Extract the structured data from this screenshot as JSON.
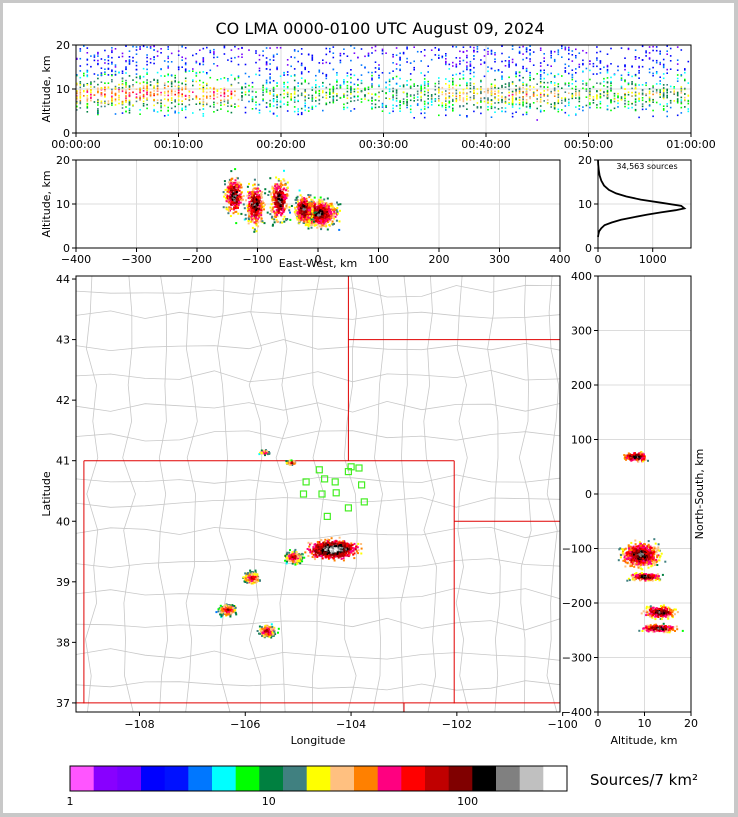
{
  "chart_data": [
    {
      "type": "scatter",
      "panel": "time-altitude",
      "title": "CO LMA 0000-0100 UTC August 09, 2024",
      "ylabel": "Altitude, km",
      "xlabel": "",
      "ylim": [
        0,
        20
      ],
      "yticks": [
        "0",
        "10",
        "20"
      ],
      "xticks": [
        "00:00:00",
        "00:10:00",
        "00:20:00",
        "00:30:00",
        "00:40:00",
        "00:50:00",
        "01:00:00"
      ],
      "x_range_minutes": [
        0,
        60
      ],
      "grid": true
    },
    {
      "type": "scatter",
      "panel": "east-west-altitude",
      "xlabel": "East-West, km",
      "ylabel": "Altitude, km",
      "xlim": [
        -400,
        400
      ],
      "ylim": [
        0,
        20
      ],
      "xticks": [
        "−400",
        "−300",
        "−200",
        "−100",
        "0",
        "100",
        "200",
        "300",
        "400"
      ],
      "yticks": [
        "0",
        "10",
        "20"
      ],
      "grid": true
    },
    {
      "type": "line",
      "panel": "altitude-histogram",
      "annotation": "34,563 sources",
      "xticks": [
        "0",
        "1000"
      ],
      "yticks": [
        "0",
        "10",
        "20"
      ],
      "series": [
        {
          "x": [
            0,
            5,
            20,
            60,
            120,
            250,
            420,
            650,
            900,
            1150,
            1420,
            1580,
            1520,
            1150,
            780,
            520,
            330,
            200,
            110,
            60,
            30,
            12,
            4,
            0
          ],
          "y": [
            2.5,
            3,
            3.8,
            4.5,
            5.2,
            5.8,
            6.4,
            7,
            7.6,
            8.1,
            8.6,
            9,
            9.6,
            10.3,
            11,
            11.7,
            12.4,
            13.2,
            14.2,
            15.3,
            16.5,
            17.8,
            19,
            20
          ]
        }
      ]
    },
    {
      "type": "scatter",
      "panel": "plan-view",
      "xlabel": "Longitude",
      "ylabel": "Latitude",
      "xlim": [
        -109.2,
        -100.05
      ],
      "ylim": [
        36.85,
        44.05
      ],
      "xticks": [
        "−108",
        "−106",
        "−104",
        "−102",
        "−100"
      ],
      "yticks": [
        "37",
        "38",
        "39",
        "40",
        "41",
        "42",
        "43",
        "44"
      ],
      "stations": [
        [
          -104.6,
          40.85
        ],
        [
          -104.0,
          40.9
        ],
        [
          -104.05,
          40.82
        ],
        [
          -104.85,
          40.65
        ],
        [
          -104.5,
          40.7
        ],
        [
          -104.3,
          40.65
        ],
        [
          -103.85,
          40.88
        ],
        [
          -103.8,
          40.6
        ],
        [
          -104.9,
          40.45
        ],
        [
          -104.55,
          40.45
        ],
        [
          -104.28,
          40.47
        ],
        [
          -103.75,
          40.32
        ],
        [
          -104.05,
          40.22
        ],
        [
          -104.45,
          40.08
        ]
      ],
      "clusters": [
        {
          "lon": -105.65,
          "lat": 41.15,
          "size": "small"
        },
        {
          "lon": -105.15,
          "lat": 40.98,
          "size": "small"
        },
        {
          "lon": -104.35,
          "lat": 39.55,
          "size": "large"
        },
        {
          "lon": -105.1,
          "lat": 39.42,
          "size": "medium"
        },
        {
          "lon": -105.9,
          "lat": 39.08,
          "size": "medium"
        },
        {
          "lon": -106.35,
          "lat": 38.55,
          "size": "medium"
        },
        {
          "lon": -105.6,
          "lat": 38.2,
          "size": "medium"
        }
      ]
    },
    {
      "type": "scatter",
      "panel": "altitude-north-south",
      "xlabel": "Altitude, km",
      "ylabel": "North-South, km",
      "xlim": [
        0,
        20
      ],
      "ylim": [
        -400,
        400
      ],
      "xticks": [
        "0",
        "10",
        "20"
      ],
      "yticks": [
        "−400",
        "−300",
        "−200",
        "−100",
        "0",
        "100",
        "200",
        "300",
        "400"
      ],
      "grid": true
    }
  ],
  "colorbar": {
    "label": "Sources/7 km²",
    "ticks": [
      "1",
      "10",
      "100"
    ],
    "colors": [
      "#ff55ff",
      "#8800ff",
      "#7700ff",
      "#0000ff",
      "#0011ff",
      "#0077ff",
      "#00ffff",
      "#00ff00",
      "#008040",
      "#408080",
      "#ffff00",
      "#ffc080",
      "#ff8000",
      "#ff0080",
      "#ff0000",
      "#c00000",
      "#800000",
      "#000000",
      "#808080",
      "#c0c0c0",
      "#ffffff"
    ]
  }
}
